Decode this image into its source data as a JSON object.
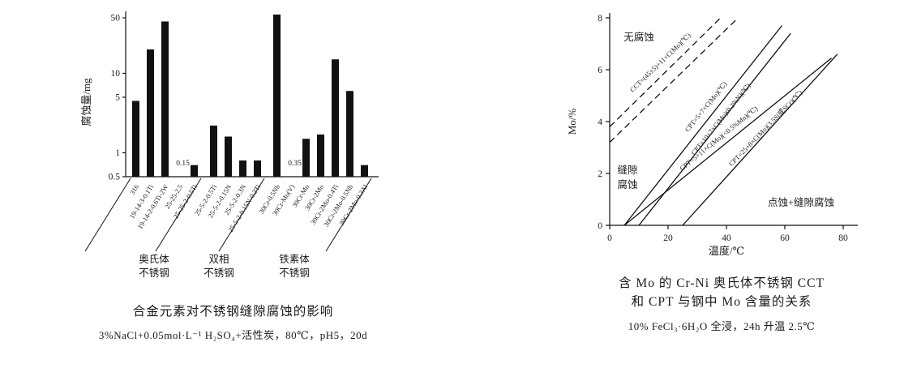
{
  "figure_left": {
    "caption": "合金元素对不锈钢缝隙腐蚀的影响",
    "subcaption": "3%NaCl+0.05mol·L⁻¹ H₂SO₄+活性炭，80℃，pH5，20d"
  },
  "figure_right": {
    "caption_line1": "含 Mo 的 Cr-Ni 奥氏体不锈钢 CCT",
    "caption_line2": "和 CPT 与钢中 Mo 含量的关系",
    "subcaption": "10% FeCl₃·6H₂O 全浸，24h 升温 2.5℃"
  },
  "chart_data": [
    {
      "type": "bar",
      "title": "合金元素对不锈钢缝隙腐蚀的影响",
      "note": "3%NaCl+0.05mol·L⁻¹ H₂SO₄+活性炭，80℃，pH5，20d",
      "ylabel": "腐蚀量/mg",
      "yscale": "log",
      "ylim": [
        0.5,
        50
      ],
      "yticks": [
        0.5,
        1,
        5,
        10,
        50
      ],
      "bar_color": "#111111",
      "categories": [
        "316",
        "19-14-3-0.1Ti",
        "19-14-2-0.6Ti-2W",
        "25-25-2.5",
        "25-25-2-0.5Ti",
        "25-5-2-0.5Ti",
        "25-5-2-0.15N",
        "25-5-2-0.3N",
        "25-5-2-0.15N-0.2Ti",
        "30Cr-0.5Nb",
        "30Cr-Mo(V)",
        "30Cr-Mo",
        "30Cr-2Mo",
        "30Cr-2Mo-0.4Ti",
        "30Cr-2Mo-0.5Nb",
        "30Cr-2Mo-0.3Al"
      ],
      "values": [
        4.5,
        20,
        45,
        0.15,
        0.7,
        2.2,
        1.6,
        0.8,
        0.8,
        55,
        0.35,
        1.5,
        1.7,
        15,
        6,
        0.7
      ],
      "text_value_indices": [
        3,
        10
      ],
      "groups": [
        {
          "label_line1": "奥氏体",
          "label_line2": "不锈钢",
          "start": 0,
          "end": 4
        },
        {
          "label_line1": "双相",
          "label_line2": "不锈钢",
          "start": 5,
          "end": 8
        },
        {
          "label_line1": "铁素体",
          "label_line2": "不锈钢",
          "start": 9,
          "end": 15
        }
      ]
    },
    {
      "type": "line",
      "title": "含 Mo 的 Cr-Ni 奥氏体不锈钢 CCT 和 CPT 与钢中 Mo 含量的关系",
      "note": "10% FeCl₃·6H₂O 全浸，24h 升温 2.5℃",
      "xlabel": "温度/℃",
      "ylabel": "Mo/%",
      "xlim": [
        0,
        80
      ],
      "ylim": [
        0,
        8
      ],
      "xticks": [
        0,
        20,
        40,
        60,
        80
      ],
      "yticks": [
        0,
        2,
        4,
        6,
        8
      ],
      "series": [
        {
          "label": "CCT=(45±5)+11×C(Mo)(℃)",
          "style": "dashed",
          "points": [
            [
              0,
              3.8
            ],
            [
              38,
              8
            ]
          ]
        },
        {
          "label": null,
          "style": "dashed",
          "points": [
            [
              0,
              3.2
            ],
            [
              44,
              8
            ]
          ]
        },
        {
          "label": "CPT=5+7×C(Mo)(℃)",
          "style": "solid",
          "points": [
            [
              5,
              0
            ],
            [
              59,
              7.7
            ]
          ]
        },
        {
          "label": "CPT=10+7×C(Mo)(0.2%N)(℃)",
          "style": "solid",
          "points": [
            [
              10,
              0
            ],
            [
              62,
              7.4
            ]
          ]
        },
        {
          "label": "CPT=5+11×C(Mo)(<0.5%Mn)(℃)",
          "style": "solid",
          "points": [
            [
              5,
              0
            ],
            [
              76,
              6.45
            ]
          ]
        },
        {
          "label": "CPT=25+8×C(Mo)(3.5Si或SCr)(℃)",
          "style": "solid",
          "points": [
            [
              25,
              0
            ],
            [
              78,
              6.6
            ]
          ]
        }
      ],
      "regions": [
        {
          "label": "无腐蚀"
        },
        {
          "label": "缝隙腐蚀"
        },
        {
          "label": "点蚀+缝隙腐蚀"
        }
      ]
    }
  ]
}
